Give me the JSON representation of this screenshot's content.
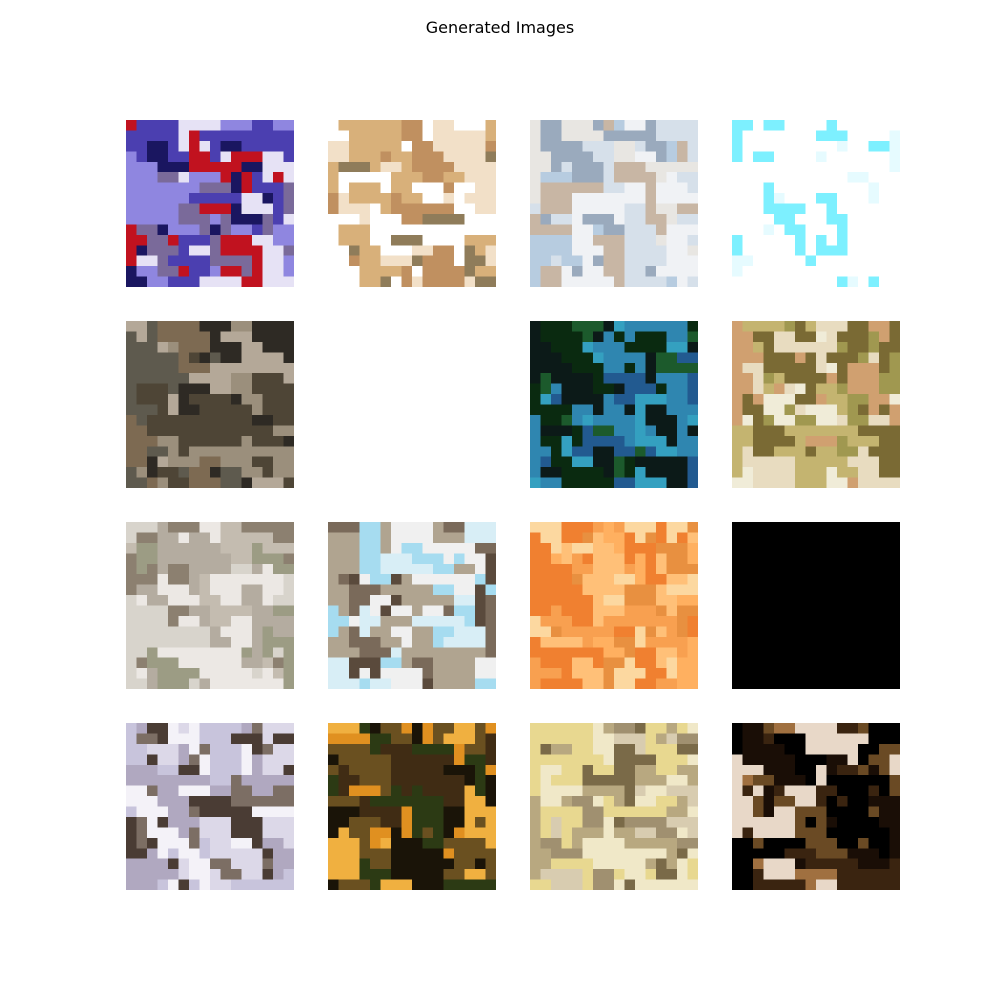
{
  "figure": {
    "title": "Generated Images"
  },
  "grid": {
    "rows": 4,
    "cols": 4,
    "tiles": [
      {
        "row": 0,
        "col": 0,
        "kind": "image",
        "palette": [
          "#1a1660",
          "#4b3fb0",
          "#8f86e0",
          "#e6e2f5",
          "#c1121f",
          "#7a6a9a"
        ]
      },
      {
        "row": 0,
        "col": 1,
        "kind": "image",
        "palette": [
          "#ffffff",
          "#ffffff",
          "#d8b07a",
          "#c09060",
          "#8f7c5a",
          "#f2e0c8"
        ]
      },
      {
        "row": 0,
        "col": 2,
        "kind": "image",
        "palette": [
          "#b7cce0",
          "#d6e0ea",
          "#e8e6e2",
          "#9aaabd",
          "#c8b6a4",
          "#f0f2f5"
        ]
      },
      {
        "row": 0,
        "col": 3,
        "kind": "image",
        "palette": [
          "#ffffff",
          "#ffffff",
          "#ffffff",
          "#e6fbff",
          "#7df0ff",
          "#ffffff"
        ]
      },
      {
        "row": 1,
        "col": 0,
        "kind": "image",
        "palette": [
          "#4e4536",
          "#7d6a52",
          "#2e2a24",
          "#9b8f7c",
          "#5e5a4e",
          "#b4a898"
        ]
      },
      {
        "row": 1,
        "col": 1,
        "kind": "image",
        "palette": [
          "#ffffff"
        ]
      },
      {
        "row": 1,
        "col": 2,
        "kind": "image",
        "palette": [
          "#0a2a10",
          "#1c5a2c",
          "#2f86b0",
          "#0c1a18",
          "#34a0c0",
          "#225a90"
        ]
      },
      {
        "row": 1,
        "col": 3,
        "kind": "image",
        "palette": [
          "#a09850",
          "#c4b470",
          "#e8dcc0",
          "#7a6a34",
          "#d0a070",
          "#f0ecd8"
        ]
      },
      {
        "row": 2,
        "col": 0,
        "kind": "image",
        "palette": [
          "#d8d4cc",
          "#b4aca0",
          "#8c8070",
          "#ece8e4",
          "#9c9c84",
          "#c4bcb0"
        ]
      },
      {
        "row": 2,
        "col": 1,
        "kind": "image",
        "palette": [
          "#a6dcf0",
          "#d8eef6",
          "#7a6a5a",
          "#f0f0f0",
          "#5a4a3c",
          "#b0a490"
        ]
      },
      {
        "row": 2,
        "col": 2,
        "kind": "image",
        "palette": [
          "#f8a050",
          "#ffc078",
          "#f08030",
          "#fcd8a0",
          "#e89040",
          "#ffb060"
        ]
      },
      {
        "row": 2,
        "col": 3,
        "kind": "image",
        "palette": [
          "#000000"
        ]
      },
      {
        "row": 3,
        "col": 0,
        "kind": "image",
        "palette": [
          "#dcd8e8",
          "#c8c4dc",
          "#f4f2f8",
          "#7c6e64",
          "#4a3c34",
          "#b0a8c0"
        ]
      },
      {
        "row": 3,
        "col": 1,
        "kind": "image",
        "palette": [
          "#e09020",
          "#402c14",
          "#1a1408",
          "#f0b040",
          "#6a5020",
          "#2c3a14"
        ]
      },
      {
        "row": 3,
        "col": 2,
        "kind": "image",
        "palette": [
          "#d8ccb0",
          "#b8a880",
          "#f0e8c8",
          "#7a6a48",
          "#e8d890",
          "#a09070"
        ]
      },
      {
        "row": 3,
        "col": 3,
        "kind": "image",
        "palette": [
          "#000000",
          "#1a0e06",
          "#6a4a24",
          "#a07040",
          "#e8d8c8",
          "#3a2410"
        ]
      }
    ]
  }
}
